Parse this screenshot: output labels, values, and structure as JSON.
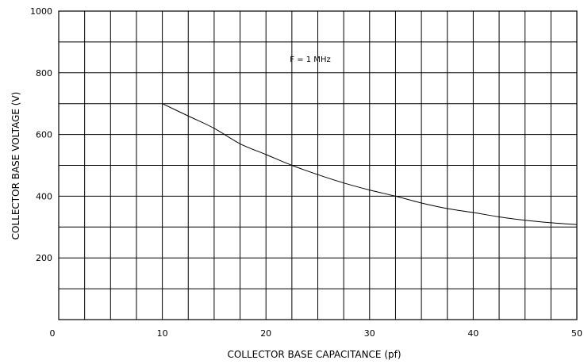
{
  "chart_data": {
    "type": "line",
    "title": "",
    "xlabel": "COLLECTOR BASE CAPACITANCE (pf)",
    "ylabel": "COLLECTOR BASE VOLTAGE (V)",
    "xlim": [
      0,
      50
    ],
    "ylim": [
      0,
      1000
    ],
    "x_ticks": [
      "0",
      "10",
      "20",
      "30",
      "40",
      "50"
    ],
    "y_ticks": [
      "200",
      "400",
      "600",
      "800",
      "1000"
    ],
    "x_grid_step": 2.5,
    "y_grid_step": 100,
    "grid": true,
    "annotation": "F = 1 MHz",
    "series": [
      {
        "x": [
          10,
          12.5,
          15,
          17.5,
          20,
          22.5,
          25,
          27.5,
          30,
          32.5,
          35,
          37.5,
          40,
          42.5,
          45,
          47.5,
          50
        ],
        "y": [
          700,
          660,
          620,
          570,
          535,
          500,
          470,
          443,
          420,
          400,
          378,
          360,
          347,
          333,
          322,
          314,
          308
        ]
      }
    ]
  }
}
